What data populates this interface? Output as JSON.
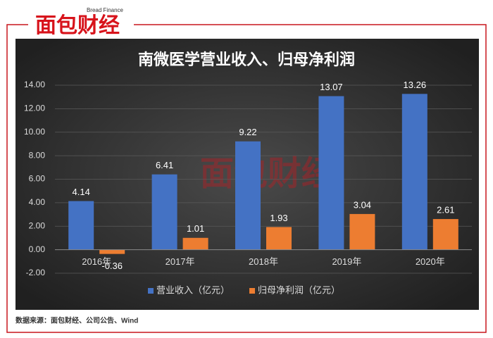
{
  "header": {
    "logo": "面包财经",
    "logo_en": "Bread Finance"
  },
  "chart_data": {
    "type": "bar",
    "title": "南微医学营业收入、归母净利润",
    "categories": [
      "2016年",
      "2017年",
      "2018年",
      "2019年",
      "2020年"
    ],
    "series": [
      {
        "name": "营业收入（亿元）",
        "color": "#4472c4",
        "values": [
          4.14,
          6.41,
          9.22,
          13.07,
          13.26
        ]
      },
      {
        "name": "归母净利润（亿元）",
        "color": "#ed7d31",
        "values": [
          -0.36,
          1.01,
          1.93,
          3.04,
          2.61
        ]
      }
    ],
    "ylim": [
      -2,
      14
    ],
    "yticks": [
      {
        "value": -2,
        "label": "-2.00"
      },
      {
        "value": 0,
        "label": "0.00"
      },
      {
        "value": 2,
        "label": "2.00"
      },
      {
        "value": 4,
        "label": "4.00"
      },
      {
        "value": 6,
        "label": "6.00"
      },
      {
        "value": 8,
        "label": "8.00"
      },
      {
        "value": 10,
        "label": "10.00"
      },
      {
        "value": 12,
        "label": "12.00"
      },
      {
        "value": 14,
        "label": "14.00"
      }
    ],
    "grid": true,
    "legend": "bottom"
  },
  "footer": {
    "source": "数据来源：面包财经、公司公告、Wind"
  }
}
